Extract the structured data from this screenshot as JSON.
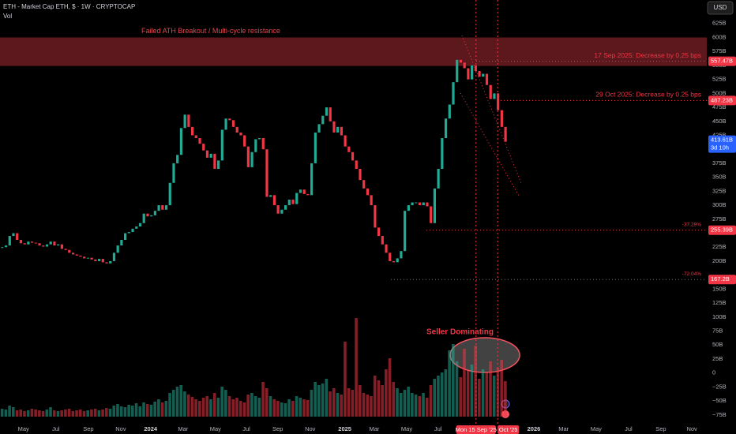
{
  "chart_data": {
    "type": "candlestick",
    "title": "ETH - Market Cap ETH, $ · 1W · CRYPTOCAP",
    "volume_label": "Vol",
    "currency": "USD",
    "up_color": "#22ab94",
    "down_color": "#f23645",
    "close": [
      225,
      228,
      245,
      250,
      238,
      232,
      230,
      235,
      233,
      232,
      228,
      226,
      230,
      235,
      228,
      230,
      222,
      220,
      215,
      212,
      210,
      208,
      205,
      206,
      203,
      200,
      204,
      198,
      196,
      200,
      215,
      228,
      238,
      250,
      252,
      258,
      262,
      268,
      285,
      280,
      282,
      290,
      300,
      292,
      300,
      340,
      375,
      390,
      438,
      462,
      440,
      425,
      420,
      410,
      398,
      385,
      392,
      365,
      380,
      435,
      455,
      452,
      440,
      430,
      425,
      405,
      368,
      395,
      418,
      420,
      400,
      315,
      318,
      300,
      285,
      292,
      300,
      310,
      302,
      322,
      328,
      320,
      318,
      375,
      430,
      445,
      460,
      475,
      450,
      430,
      440,
      425,
      405,
      395,
      380,
      365,
      345,
      330,
      318,
      300,
      260,
      245,
      230,
      215,
      200,
      198,
      205,
      218,
      290,
      300,
      305,
      305,
      300,
      305,
      298,
      268,
      330,
      365,
      420,
      455,
      480,
      520,
      560,
      555,
      545,
      525,
      550,
      540,
      530,
      535,
      515,
      490,
      500,
      470,
      440,
      413.61
    ],
    "volume": [
      10,
      9,
      14,
      12,
      8,
      9,
      7,
      8,
      10,
      9,
      8,
      7,
      9,
      12,
      8,
      7,
      8,
      9,
      10,
      7,
      8,
      9,
      7,
      8,
      9,
      10,
      8,
      9,
      11,
      10,
      14,
      16,
      13,
      12,
      15,
      14,
      17,
      13,
      18,
      16,
      15,
      19,
      22,
      18,
      20,
      30,
      34,
      38,
      40,
      32,
      28,
      25,
      22,
      20,
      24,
      26,
      22,
      30,
      24,
      38,
      34,
      26,
      22,
      24,
      20,
      18,
      28,
      30,
      26,
      24,
      44,
      36,
      26,
      22,
      20,
      18,
      17,
      22,
      20,
      26,
      24,
      22,
      21,
      34,
      44,
      40,
      42,
      48,
      32,
      36,
      30,
      28,
      95,
      36,
      34,
      125,
      40,
      30,
      28,
      26,
      52,
      46,
      40,
      60,
      74,
      44,
      36,
      30,
      34,
      38,
      30,
      28,
      26,
      30,
      24,
      40,
      48,
      52,
      56,
      60,
      84,
      92,
      70,
      50,
      86,
      58,
      66,
      90,
      48,
      60,
      56,
      70,
      52,
      62,
      72,
      45
    ],
    "xlim": [
      -0.6,
      189
    ],
    "xticks": [
      {
        "value": 5.7,
        "label": "May"
      },
      {
        "value": 14.4,
        "label": "Jul"
      },
      {
        "value": 23.1,
        "label": "Sep"
      },
      {
        "value": 31.8,
        "label": "Nov"
      },
      {
        "value": 39.8,
        "label": "2024"
      },
      {
        "value": 48.5,
        "label": "Mar"
      },
      {
        "value": 57.2,
        "label": "May"
      },
      {
        "value": 65.5,
        "label": "Jul"
      },
      {
        "value": 73.9,
        "label": "Sep"
      },
      {
        "value": 82.6,
        "label": "Nov"
      },
      {
        "value": 91.9,
        "label": "2025"
      },
      {
        "value": 99.8,
        "label": "Mar"
      },
      {
        "value": 108.5,
        "label": "May"
      },
      {
        "value": 116.9,
        "label": "Jul"
      },
      {
        "value": 142.6,
        "label": "2026"
      },
      {
        "value": 150.6,
        "label": "Mar"
      },
      {
        "value": 159.3,
        "label": "May"
      },
      {
        "value": 168,
        "label": "Jul"
      },
      {
        "value": 176.7,
        "label": "Sep"
      },
      {
        "value": 185,
        "label": "Nov"
      }
    ],
    "marker_xticks": [
      {
        "value": 127.1,
        "label": "Mon 15 Sep '25"
      },
      {
        "value": 132.9,
        "label": "Oct '25"
      }
    ],
    "ylim": [
      -95,
      667
    ],
    "yticks": [
      {
        "value": 625,
        "label": "625B"
      },
      {
        "value": 600,
        "label": "600B"
      },
      {
        "value": 575,
        "label": "575B"
      },
      {
        "value": 550,
        "label": "550B"
      },
      {
        "value": 525,
        "label": "525B"
      },
      {
        "value": 500,
        "label": "500B"
      },
      {
        "value": 475,
        "label": "475B"
      },
      {
        "value": 450,
        "label": "450B"
      },
      {
        "value": 425,
        "label": "425B"
      },
      {
        "value": 375,
        "label": "375B"
      },
      {
        "value": 350,
        "label": "350B"
      },
      {
        "value": 325,
        "label": "325B"
      },
      {
        "value": 300,
        "label": "300B"
      },
      {
        "value": 275,
        "label": "275B"
      },
      {
        "value": 225,
        "label": "225B"
      },
      {
        "value": 200,
        "label": "200B"
      },
      {
        "value": 150,
        "label": "150B"
      },
      {
        "value": 125,
        "label": "125B"
      },
      {
        "value": 100,
        "label": "100B"
      },
      {
        "value": 75,
        "label": "75B"
      },
      {
        "value": 50,
        "label": "50B"
      },
      {
        "value": 25,
        "label": "25B"
      },
      0,
      {
        "value": -25,
        "label": "−25B"
      },
      {
        "value": -50,
        "label": "−50B"
      },
      {
        "value": -75,
        "label": "−75B"
      }
    ],
    "zone": {
      "range": [
        549,
        600
      ],
      "label": "Failed ATH Breakout / Multi-cycle resistance"
    },
    "levels": [
      {
        "value": 557.47,
        "label": "557.47B",
        "note": "17 Sep 2025: Decrease by 0.25 bps"
      },
      {
        "value": 487.23,
        "label": "487.23B",
        "note": "29 Oct 2025: Decrease by 0.25 bps"
      },
      {
        "value": 255.39,
        "label": "255.39B",
        "note": "-37.29%"
      },
      {
        "value": 167.2,
        "label": "167.2B",
        "note": "-72.04%"
      }
    ],
    "last_price_label": "413.61B",
    "countdown": "3d 10h",
    "annotation": "Seller Dominating"
  }
}
